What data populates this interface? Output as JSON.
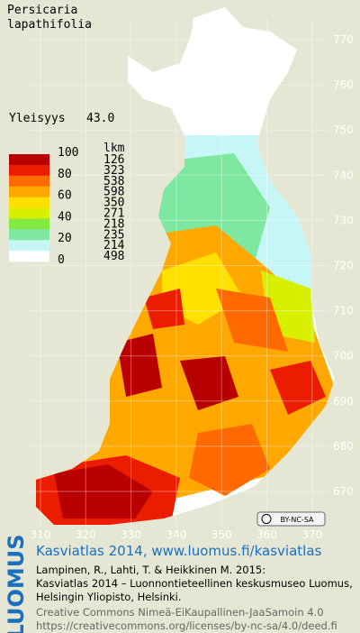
{
  "header": {
    "title": [
      "Persicaria",
      "lapathifolia"
    ],
    "frequency_label": "Yleisyys",
    "frequency_value": "43.0"
  },
  "legend": {
    "count_header": "lkm",
    "scale_labels": [
      "100",
      "80",
      "60",
      "40",
      "20",
      "0"
    ],
    "classes": [
      {
        "color": "#b80000",
        "count": 126
      },
      {
        "color": "#ec1c00",
        "count": 323
      },
      {
        "color": "#ff6a00",
        "count": 538
      },
      {
        "color": "#ffa800",
        "count": 598
      },
      {
        "color": "#ffe000",
        "count": 350
      },
      {
        "color": "#d8f000",
        "count": 271
      },
      {
        "color": "#86e843",
        "count": 218
      },
      {
        "color": "#7ee8a0",
        "count": 235
      },
      {
        "color": "#c6f6f6",
        "count": 214
      },
      {
        "color": "#ffffff",
        "count": 498
      }
    ]
  },
  "map": {
    "yticks": [
      770,
      760,
      750,
      740,
      730,
      720,
      710,
      700,
      690,
      680,
      670
    ],
    "xticks": [
      310,
      320,
      330,
      340,
      350,
      360,
      370
    ],
    "license_badge": "BY-NC-SA"
  },
  "footer": {
    "logo": "LUOMUS",
    "link": "Kasviatlas 2014, www.luomus.fi/kasviatlas",
    "citation": [
      "Lampinen, R., Lahti, T. & Heikkinen M. 2015:",
      "Kasviatlas 2014 – Luonnontieteellinen keskusmuseo Luomus,",
      "Helsingin Yliopisto, Helsinki."
    ],
    "license": [
      "Creative Commons Nimeä-EiKaupallinen-JaaSamoin 4.0",
      "https://creativecommons.org/licenses/by-nc-sa/4.0/deed.fi"
    ]
  }
}
